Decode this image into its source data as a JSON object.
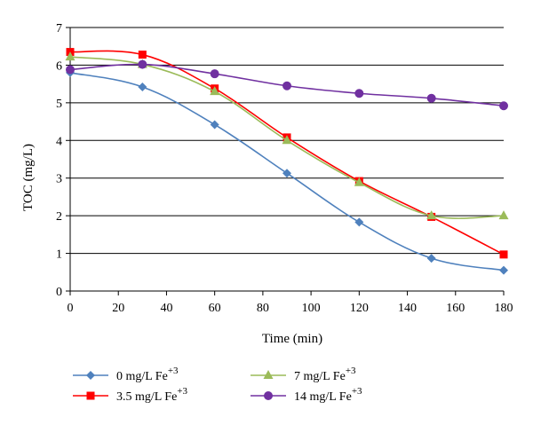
{
  "chart_data": {
    "type": "line",
    "xlabel": "Time (min)",
    "ylabel": "TOC (mg/L)",
    "xlim": [
      0,
      180
    ],
    "ylim": [
      0,
      7
    ],
    "xticks": [
      0,
      20,
      40,
      60,
      80,
      100,
      120,
      140,
      160,
      180
    ],
    "yticks": [
      0,
      1,
      2,
      3,
      4,
      5,
      6,
      7
    ],
    "grid": "horizontal",
    "legend_position": "bottom",
    "x": [
      0,
      30,
      60,
      90,
      120,
      150,
      180
    ],
    "series": [
      {
        "name": "0 mg/L Fe",
        "superscript": "+3",
        "color": "#4f81bd",
        "marker": "diamond",
        "values": [
          5.8,
          5.42,
          4.42,
          3.13,
          1.83,
          0.87,
          0.55
        ]
      },
      {
        "name": "3.5 mg/L Fe",
        "superscript": "+3",
        "color": "#ff0000",
        "marker": "square",
        "values": [
          6.35,
          6.28,
          5.38,
          4.08,
          2.92,
          1.97,
          0.97
        ]
      },
      {
        "name": "7 mg/L Fe",
        "superscript": "+3",
        "color": "#9bbb59",
        "marker": "triangle",
        "values": [
          6.22,
          6.02,
          5.3,
          4.0,
          2.88,
          2.0,
          2.0
        ]
      },
      {
        "name": "14 mg/L Fe",
        "superscript": "+3",
        "color": "#7030a0",
        "marker": "circle",
        "values": [
          5.88,
          6.02,
          5.77,
          5.45,
          5.25,
          5.12,
          4.92
        ]
      }
    ]
  }
}
